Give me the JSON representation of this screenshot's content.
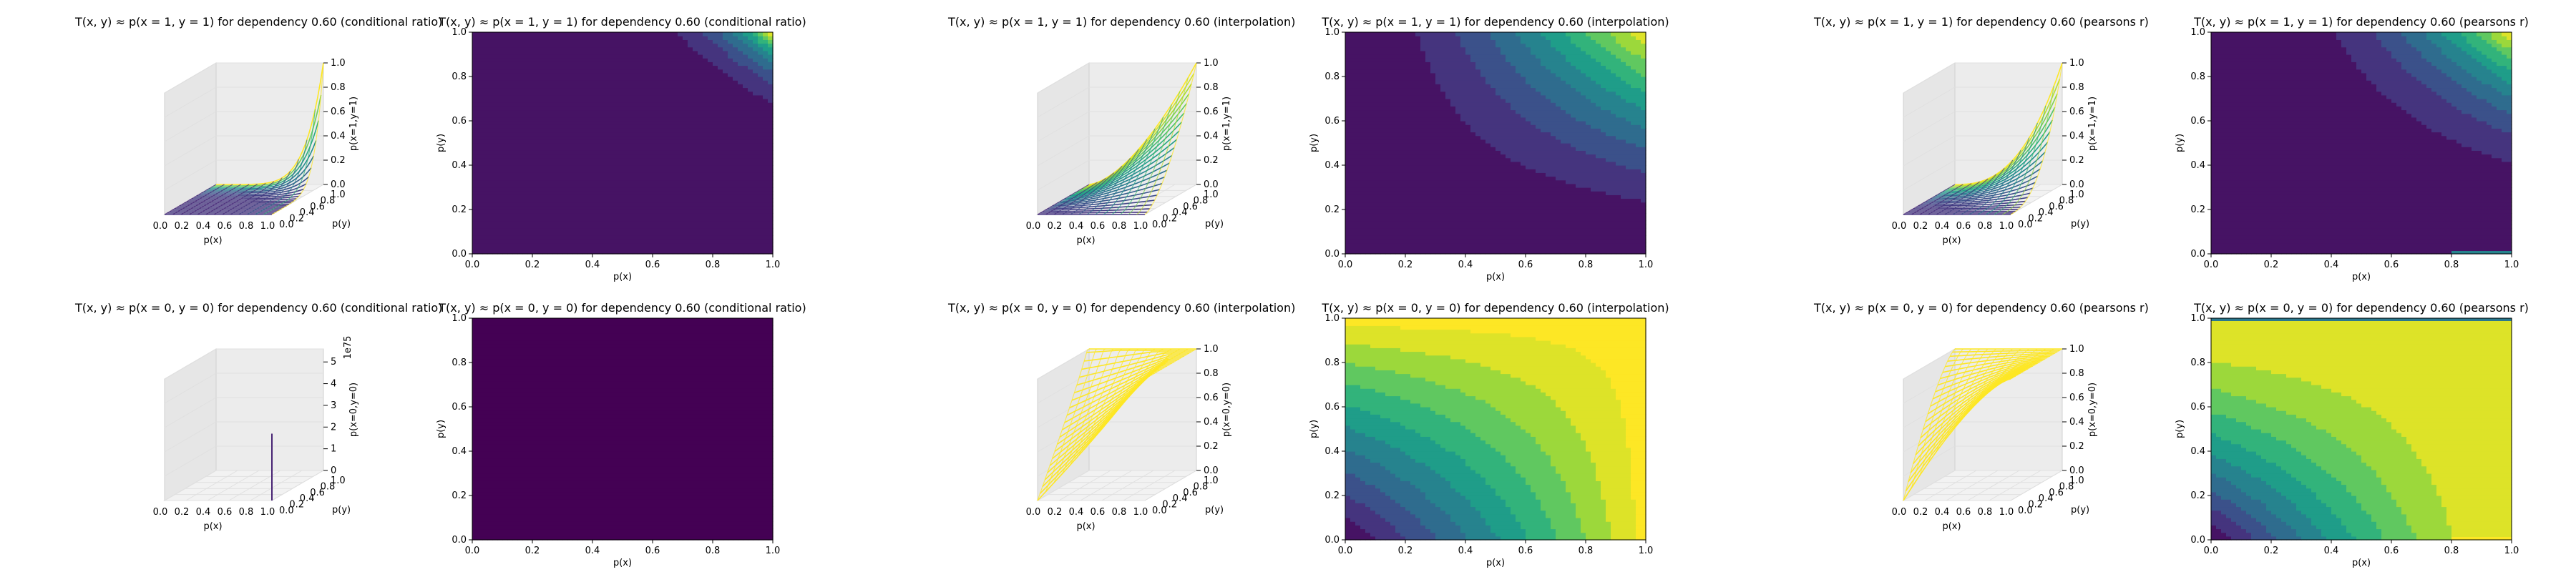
{
  "figure": {
    "rows": 2,
    "pairs_per_row": 3
  },
  "chart_data": [
    {
      "type": "surface3d",
      "title": "T(x, y) ≈ p(x = 1, y = 1) for dependency 0.60 (conditional ratio)",
      "xlabel": "p(x)",
      "ylabel": "p(y)",
      "zlabel": "p(x=1,y=1)",
      "xticks": [
        "0.0",
        "0.2",
        "0.4",
        "0.6",
        "0.8",
        "1.0"
      ],
      "yticks": [
        "0.0",
        "0.2",
        "0.4",
        "0.6",
        "0.8",
        "1.0"
      ],
      "zticks": [
        "0.0",
        "0.2",
        "0.4",
        "0.6",
        "0.8",
        "1.0"
      ],
      "zlim": [
        0,
        1
      ],
      "method": "conditional",
      "target": "x1y1"
    },
    {
      "type": "heatmap",
      "title": "T(x, y) ≈ p(x = 1, y = 1) for dependency 0.60 (conditional ratio)",
      "xlabel": "p(x)",
      "ylabel": "p(y)",
      "xticks": [
        "0.0",
        "0.2",
        "0.4",
        "0.6",
        "0.8",
        "1.0"
      ],
      "yticks": [
        "0.0",
        "0.2",
        "0.4",
        "0.6",
        "0.8",
        "1.0"
      ],
      "xlim": [
        0,
        1
      ],
      "ylim": [
        0,
        1
      ],
      "method": "conditional",
      "target": "x1y1"
    },
    {
      "type": "surface3d",
      "title": "T(x, y) ≈ p(x = 1, y = 1) for dependency 0.60 (interpolation)",
      "xlabel": "p(x)",
      "ylabel": "p(y)",
      "zlabel": "p(x=1,y=1)",
      "xticks": [
        "0.0",
        "0.2",
        "0.4",
        "0.6",
        "0.8",
        "1.0"
      ],
      "yticks": [
        "0.0",
        "0.2",
        "0.4",
        "0.6",
        "0.8",
        "1.0"
      ],
      "zticks": [
        "0.0",
        "0.2",
        "0.4",
        "0.6",
        "0.8",
        "1.0"
      ],
      "zlim": [
        0,
        1
      ],
      "method": "interpolation",
      "target": "x1y1"
    },
    {
      "type": "heatmap",
      "title": "T(x, y) ≈ p(x = 1, y = 1) for dependency 0.60 (interpolation)",
      "xlabel": "p(x)",
      "ylabel": "p(y)",
      "xticks": [
        "0.0",
        "0.2",
        "0.4",
        "0.6",
        "0.8",
        "1.0"
      ],
      "yticks": [
        "0.0",
        "0.2",
        "0.4",
        "0.6",
        "0.8",
        "1.0"
      ],
      "xlim": [
        0,
        1
      ],
      "ylim": [
        0,
        1
      ],
      "method": "interpolation",
      "target": "x1y1"
    },
    {
      "type": "surface3d",
      "title": "T(x, y) ≈ p(x = 1, y = 1) for dependency 0.60 (pearsons r)",
      "xlabel": "p(x)",
      "ylabel": "p(y)",
      "zlabel": "p(x=1,y=1)",
      "xticks": [
        "0.0",
        "0.2",
        "0.4",
        "0.6",
        "0.8",
        "1.0"
      ],
      "yticks": [
        "0.0",
        "0.2",
        "0.4",
        "0.6",
        "0.8",
        "1.0"
      ],
      "zticks": [
        "0.0",
        "0.2",
        "0.4",
        "0.6",
        "0.8",
        "1.0"
      ],
      "zlim": [
        0,
        1
      ],
      "method": "pearson",
      "target": "x1y1"
    },
    {
      "type": "heatmap",
      "title": "T(x, y) ≈ p(x = 1, y = 1) for dependency 0.60 (pearsons r)",
      "xlabel": "p(x)",
      "ylabel": "p(y)",
      "xticks": [
        "0.0",
        "0.2",
        "0.4",
        "0.6",
        "0.8",
        "1.0"
      ],
      "yticks": [
        "0.0",
        "0.2",
        "0.4",
        "0.6",
        "0.8",
        "1.0"
      ],
      "xlim": [
        0,
        1
      ],
      "ylim": [
        0,
        1
      ],
      "method": "pearson",
      "target": "x1y1"
    },
    {
      "type": "surface3d",
      "title": "T(x, y) ≈ p(x = 0, y = 0) for dependency 0.60 (conditional ratio)",
      "xlabel": "p(x)",
      "ylabel": "p(y)",
      "zlabel": "p(x=0,y=0)",
      "zlabel_overlay": "1e75",
      "xticks": [
        "0.0",
        "0.2",
        "0.4",
        "0.6",
        "0.8",
        "1.0"
      ],
      "yticks": [
        "0.0",
        "0.2",
        "0.4",
        "0.6",
        "0.8",
        "1.0"
      ],
      "zticks": [
        "0",
        "1",
        "2",
        "3",
        "4",
        "5"
      ],
      "zlim": [
        0,
        5.6
      ],
      "method": "conditional_zero",
      "target": "x0y0"
    },
    {
      "type": "heatmap",
      "title": "T(x, y) ≈ p(x = 0, y = 0) for dependency 0.60 (conditional ratio)",
      "xlabel": "p(x)",
      "ylabel": "p(y)",
      "xticks": [
        "0.0",
        "0.2",
        "0.4",
        "0.6",
        "0.8",
        "1.0"
      ],
      "yticks": [
        "0.0",
        "0.2",
        "0.4",
        "0.6",
        "0.8",
        "1.0"
      ],
      "xlim": [
        0,
        1
      ],
      "ylim": [
        0,
        1
      ],
      "method": "conditional_zero",
      "target": "x0y0"
    },
    {
      "type": "surface3d",
      "title": "T(x, y) ≈ p(x = 0, y = 0) for dependency 0.60 (interpolation)",
      "xlabel": "p(x)",
      "ylabel": "p(y)",
      "zlabel": "p(x=0,y=0)",
      "xticks": [
        "0.0",
        "0.2",
        "0.4",
        "0.6",
        "0.8",
        "1.0"
      ],
      "yticks": [
        "0.0",
        "0.2",
        "0.4",
        "0.6",
        "0.8",
        "1.0"
      ],
      "zticks": [
        "0.0",
        "0.2",
        "0.4",
        "0.6",
        "0.8",
        "1.0"
      ],
      "zlim": [
        0,
        1
      ],
      "method": "interpolation",
      "target": "x0y0"
    },
    {
      "type": "heatmap",
      "title": "T(x, y) ≈ p(x = 0, y = 0) for dependency 0.60 (interpolation)",
      "xlabel": "p(x)",
      "ylabel": "p(y)",
      "xticks": [
        "0.0",
        "0.2",
        "0.4",
        "0.6",
        "0.8",
        "1.0"
      ],
      "yticks": [
        "0.0",
        "0.2",
        "0.4",
        "0.6",
        "0.8",
        "1.0"
      ],
      "xlim": [
        0,
        1
      ],
      "ylim": [
        0,
        1
      ],
      "method": "interpolation",
      "target": "x0y0"
    },
    {
      "type": "surface3d",
      "title": "T(x, y) ≈ p(x = 0, y = 0) for dependency 0.60 (pearsons r)",
      "xlabel": "p(x)",
      "ylabel": "p(y)",
      "zlabel": "p(x=0,y=0)",
      "xticks": [
        "0.0",
        "0.2",
        "0.4",
        "0.6",
        "0.8",
        "1.0"
      ],
      "yticks": [
        "0.0",
        "0.2",
        "0.4",
        "0.6",
        "0.8",
        "1.0"
      ],
      "zticks": [
        "0.0",
        "0.2",
        "0.4",
        "0.6",
        "0.8",
        "1.0"
      ],
      "zlim": [
        0,
        1
      ],
      "method": "pearson",
      "target": "x0y0"
    },
    {
      "type": "heatmap",
      "title": "T(x, y) ≈ p(x = 0, y = 0) for dependency 0.60 (pearsons r)",
      "xlabel": "p(x)",
      "ylabel": "p(y)",
      "xticks": [
        "0.0",
        "0.2",
        "0.4",
        "0.6",
        "0.8",
        "1.0"
      ],
      "yticks": [
        "0.0",
        "0.2",
        "0.4",
        "0.6",
        "0.8",
        "1.0"
      ],
      "xlim": [
        0,
        1
      ],
      "ylim": [
        0,
        1
      ],
      "method": "pearson",
      "target": "x0y0"
    }
  ],
  "colormap": {
    "name": "viridis",
    "stops": [
      "#440154",
      "#482878",
      "#3e4989",
      "#31688e",
      "#26828e",
      "#1f9e89",
      "#35b779",
      "#6ece58",
      "#b5de2b",
      "#fde725"
    ]
  },
  "style": {
    "pane_color": "#f2f2f2",
    "pane_edge": "#d0d0d0",
    "grid_color": "#e0e0e0",
    "axis_color": "#000000"
  }
}
